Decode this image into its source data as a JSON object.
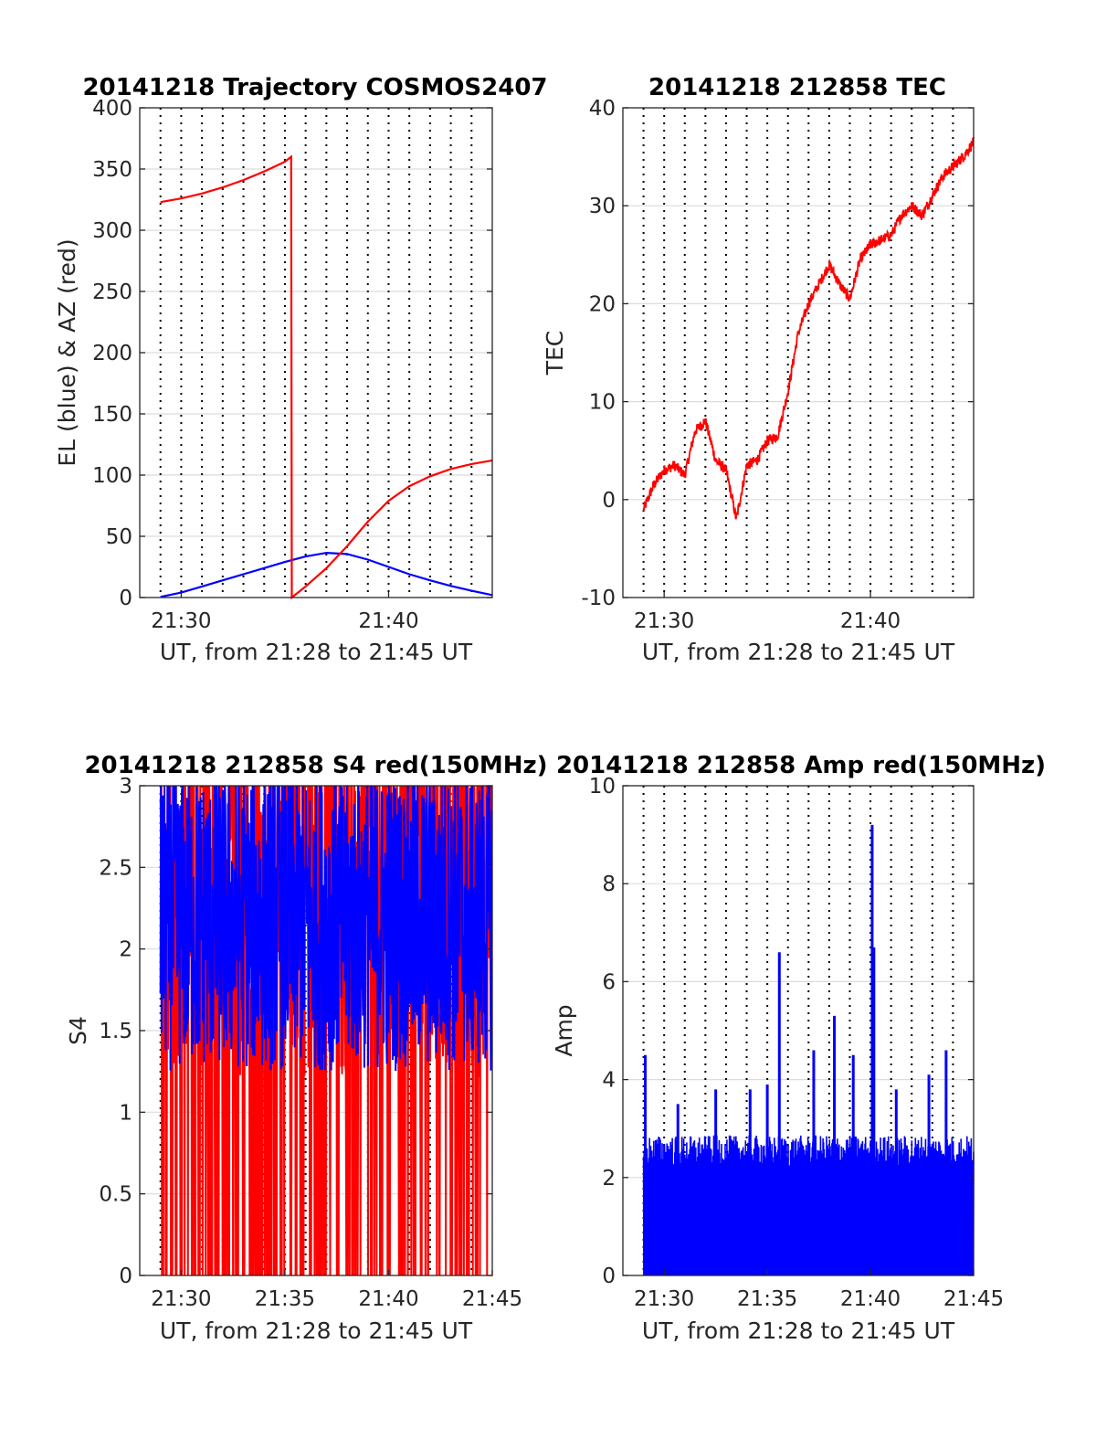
{
  "colors": {
    "el": "#0000ff",
    "az": "#ff0000",
    "tec": "#ff0000",
    "s4_red": "#ff0000",
    "s4_blue": "#0000ff",
    "amp": "#0000ff"
  },
  "chart_data": [
    {
      "type": "line",
      "title": "20141218 Trajectory COSMOS2407",
      "xlabel": "UT, from 21:28 to 21:45 UT",
      "ylabel": "EL (blue) & AZ (red)",
      "xlim": [
        "21:28",
        "21:45"
      ],
      "ylim": [
        0,
        400
      ],
      "xticks": [
        "21:30",
        "21:40"
      ],
      "yticks": [
        0,
        50,
        100,
        150,
        200,
        250,
        300,
        350,
        400
      ],
      "grid": true,
      "series": [
        {
          "color": "blue",
          "x": [
            "21:29:00",
            "21:30:00",
            "21:31:00",
            "21:32:00",
            "21:33:00",
            "21:34:00",
            "21:35:00",
            "21:36:00",
            "21:37:00",
            "21:38:00",
            "21:39:00",
            "21:40:00",
            "21:41:00",
            "21:42:00",
            "21:43:00",
            "21:44:00",
            "21:45:00"
          ],
          "y": [
            0.5,
            4,
            9,
            14,
            19,
            24,
            29,
            33.5,
            36.5,
            35.5,
            31,
            25,
            19,
            14,
            9.5,
            5.5,
            2
          ]
        },
        {
          "color": "red",
          "x": [
            "21:29:00",
            "21:30:00",
            "21:31:00",
            "21:32:00",
            "21:33:00",
            "21:34:00",
            "21:35:00",
            "21:35:18",
            "21:35:20",
            "21:36:00",
            "21:37:00",
            "21:38:00",
            "21:39:00",
            "21:40:00",
            "21:41:00",
            "21:42:00",
            "21:43:00",
            "21:44:00",
            "21:45:00"
          ],
          "y": [
            323,
            326,
            330,
            335,
            341,
            348,
            356,
            360,
            0,
            9,
            24,
            42,
            62,
            79,
            91,
            99,
            105,
            109,
            112
          ]
        }
      ]
    },
    {
      "type": "line",
      "title": "20141218 212858 TEC",
      "xlabel": "UT, from 21:28 to 21:45 UT",
      "ylabel": "TEC",
      "xlim": [
        "21:28",
        "21:45"
      ],
      "ylim": [
        -10,
        40
      ],
      "xticks": [
        "21:30",
        "21:40"
      ],
      "yticks": [
        -10,
        0,
        10,
        20,
        30,
        40
      ],
      "grid": true,
      "series": [
        {
          "color": "red",
          "x": [
            "21:29:00",
            "21:29:30",
            "21:30:00",
            "21:30:30",
            "21:31:00",
            "21:31:30",
            "21:32:00",
            "21:32:30",
            "21:33:00",
            "21:33:30",
            "21:34:00",
            "21:34:30",
            "21:35:00",
            "21:35:30",
            "21:36:00",
            "21:36:30",
            "21:37:00",
            "21:37:30",
            "21:38:00",
            "21:38:30",
            "21:39:00",
            "21:39:30",
            "21:40:00",
            "21:40:30",
            "21:41:00",
            "21:41:30",
            "21:42:00",
            "21:42:30",
            "21:43:00",
            "21:43:30",
            "21:44:00",
            "21:44:30",
            "21:45:00"
          ],
          "y": [
            -1,
            1.5,
            3,
            3.5,
            2.5,
            7,
            8,
            4,
            3,
            -2,
            3.5,
            4,
            6,
            6.5,
            11,
            17,
            20,
            22,
            24,
            22,
            20.5,
            24.5,
            26,
            26.5,
            27,
            29,
            30,
            29,
            31,
            33,
            34,
            35,
            36.5
          ]
        }
      ]
    },
    {
      "type": "line",
      "title": "20141218 212858 S4 red(150MHz)",
      "xlabel": "UT, from 21:28 to 21:45 UT",
      "ylabel": "S4",
      "xlim": [
        "21:28",
        "21:45"
      ],
      "ylim": [
        0,
        3
      ],
      "xticks": [
        "21:30",
        "21:35",
        "21:40",
        "21:45"
      ],
      "yticks": [
        0,
        0.5,
        1,
        1.5,
        2,
        2.5,
        3
      ],
      "grid": true,
      "series": [
        {
          "color": "red",
          "note_range": [
            0,
            3
          ],
          "x_start": "21:29:00",
          "x_end": "21:45:00",
          "level_low": 0,
          "level_high": 3
        },
        {
          "color": "blue",
          "x_start": "21:29:00",
          "x_end": "21:45:00",
          "level_low": 1.2,
          "level_high": 3
        }
      ]
    },
    {
      "type": "line",
      "title": "20141218 212858 Amp red(150MHz)",
      "xlabel": "UT, from 21:28 to 21:45 UT",
      "ylabel": "Amp",
      "xlim": [
        "21:28",
        "21:45"
      ],
      "ylim": [
        0,
        10
      ],
      "xticks": [
        "21:30",
        "21:35",
        "21:40",
        "21:45"
      ],
      "yticks": [
        0,
        2,
        4,
        6,
        8,
        10
      ],
      "grid": true,
      "series": [
        {
          "color": "blue",
          "x_start": "21:29:00",
          "x_end": "21:45:00",
          "baseline_peak": 2.6,
          "spikes": [
            {
              "x": "21:29:05",
              "y": 4.5
            },
            {
              "x": "21:30:40",
              "y": 3.5
            },
            {
              "x": "21:32:30",
              "y": 3.8
            },
            {
              "x": "21:34:10",
              "y": 3.8
            },
            {
              "x": "21:35:00",
              "y": 3.9
            },
            {
              "x": "21:35:35",
              "y": 6.6
            },
            {
              "x": "21:37:15",
              "y": 4.6
            },
            {
              "x": "21:38:15",
              "y": 5.3
            },
            {
              "x": "21:39:10",
              "y": 4.5
            },
            {
              "x": "21:40:05",
              "y": 9.2
            },
            {
              "x": "21:40:10",
              "y": 6.7
            },
            {
              "x": "21:41:15",
              "y": 3.8
            },
            {
              "x": "21:42:50",
              "y": 4.1
            },
            {
              "x": "21:43:40",
              "y": 4.6
            }
          ]
        }
      ]
    }
  ]
}
